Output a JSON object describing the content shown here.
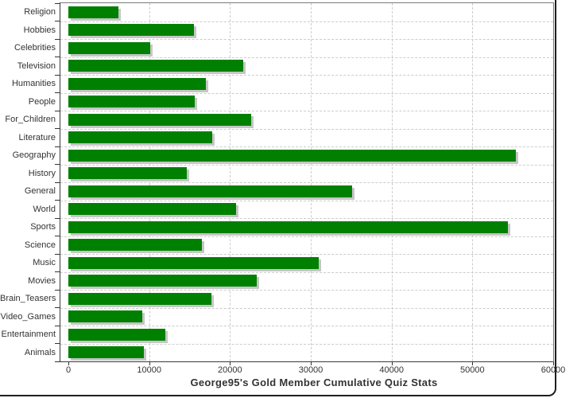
{
  "chart_data": {
    "type": "bar",
    "orientation": "horizontal",
    "title": "George95's Gold Member Cumulative Quiz Stats",
    "categories": [
      "Religion",
      "Hobbies",
      "Celebrities",
      "Television",
      "Humanities",
      "People",
      "For_Children",
      "Literature",
      "Geography",
      "History",
      "General",
      "World",
      "Sports",
      "Science",
      "Music",
      "Movies",
      "Brain_Teasers",
      "Video_Games",
      "Entertainment",
      "Animals"
    ],
    "values": [
      6200,
      15500,
      10100,
      21600,
      17000,
      15600,
      22600,
      17800,
      55400,
      14700,
      35100,
      20800,
      54400,
      16500,
      31000,
      23300,
      17700,
      9100,
      12000,
      9300
    ],
    "xlabel": "",
    "ylabel": "",
    "xlim": [
      0,
      60000
    ],
    "x_ticks": [
      0,
      10000,
      20000,
      30000,
      40000,
      50000,
      60000
    ],
    "x_tick_labels": [
      "0",
      "10000",
      "20000",
      "30000",
      "40000",
      "50000",
      "60000"
    ],
    "grid": "dashed",
    "legend": "none",
    "colors": {
      "bar": "#008000",
      "bar_shadow": "#c6c6c6",
      "gridline": "#cccccc",
      "axis": "#333333",
      "text": "#333333",
      "plot_border": "#7a7a7a",
      "window_border": "#1f1f1f",
      "background": "#ffffff"
    }
  }
}
